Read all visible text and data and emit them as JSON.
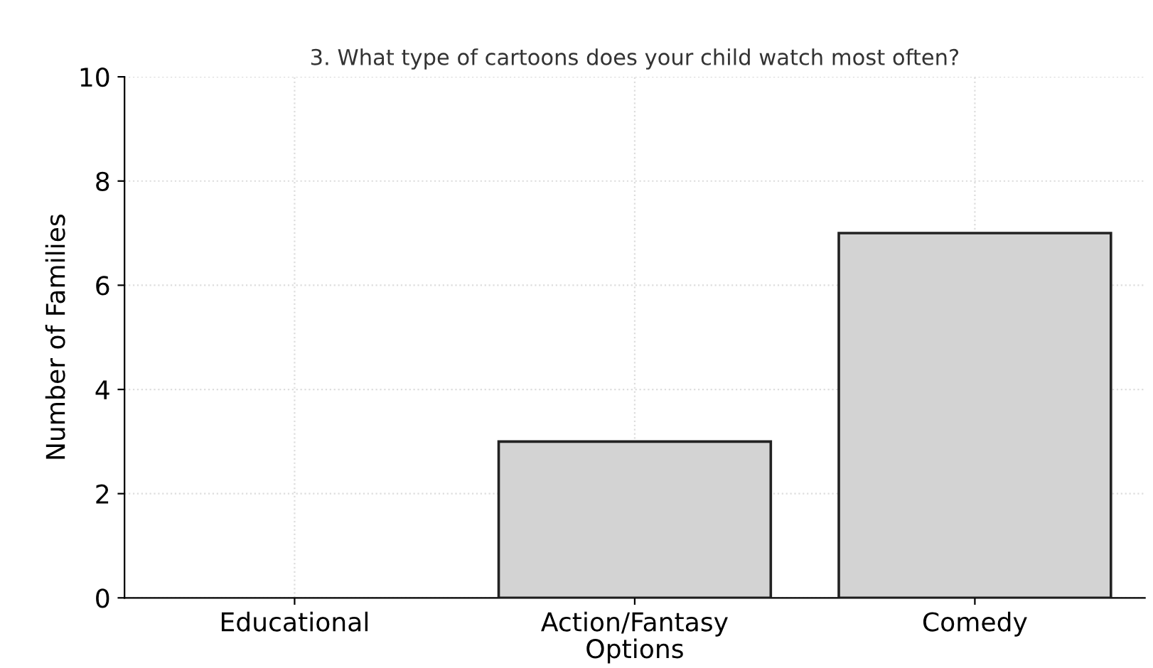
{
  "chart_data": {
    "type": "bar",
    "title": "3. What type of cartoons does your child watch most often?",
    "xlabel": "Options",
    "ylabel": "Number of Families",
    "categories": [
      "Educational",
      "Action/Fantasy",
      "Comedy"
    ],
    "values": [
      0,
      3,
      7
    ],
    "color": "#d3d3d3",
    "ylim": [
      0,
      10
    ],
    "yticks": [
      0,
      2,
      4,
      6,
      8,
      10
    ],
    "grid": true
  }
}
